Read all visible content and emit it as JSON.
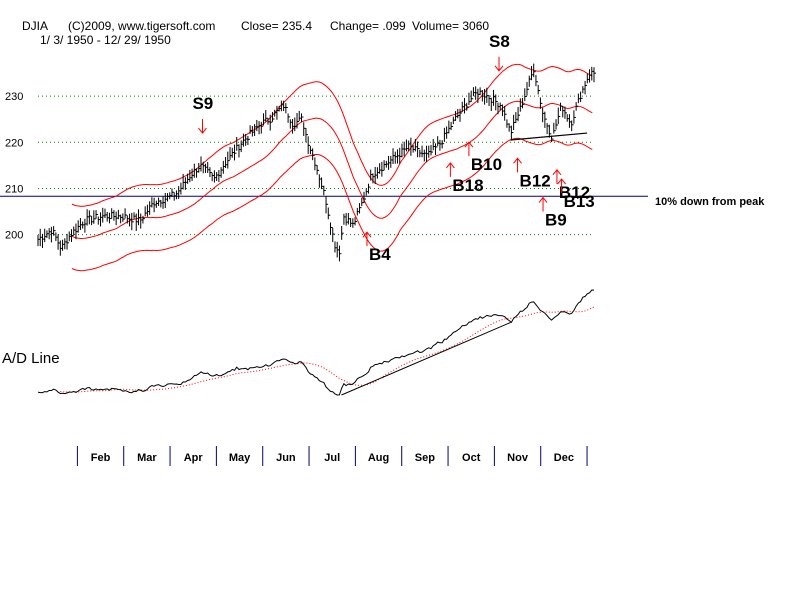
{
  "header": {
    "symbol": "DJIA",
    "copyright": "(C)2009, www.tigersoft.com",
    "close": "Close=  235.4",
    "change": "Change= .099",
    "volume": "Volume= 3060",
    "date_range": "1/ 3/ 1950 - 12/ 29/ 1950"
  },
  "colors": {
    "price": "#000000",
    "bands": "#ff0000",
    "signals": "#ff0000",
    "reference_line": "#000080",
    "grid": "#008000",
    "month_ticks": "#000080"
  },
  "chart_data": {
    "type": "line",
    "title": "DJIA 1950",
    "subtitle": "1/ 3/ 1950 - 12/ 29/ 1950",
    "y_ticks": [
      200,
      210,
      220,
      230
    ],
    "ylim": [
      188,
      240
    ],
    "grid": true,
    "months": [
      "Feb",
      "Mar",
      "Apr",
      "May",
      "Jun",
      "Jul",
      "Aug",
      "Sep",
      "Oct",
      "Nov",
      "Dec"
    ],
    "reference_line": {
      "value": 208.3,
      "label": "10% down from peak"
    },
    "price_anchors": [
      {
        "t": 0.0,
        "v": 199
      },
      {
        "t": 0.3,
        "v": 201
      },
      {
        "t": 0.5,
        "v": 197
      },
      {
        "t": 0.7,
        "v": 200
      },
      {
        "t": 1.0,
        "v": 203
      },
      {
        "t": 1.4,
        "v": 204
      },
      {
        "t": 1.8,
        "v": 204
      },
      {
        "t": 2.2,
        "v": 203
      },
      {
        "t": 2.5,
        "v": 207
      },
      {
        "t": 2.8,
        "v": 208
      },
      {
        "t": 3.0,
        "v": 209
      },
      {
        "t": 3.3,
        "v": 213
      },
      {
        "t": 3.5,
        "v": 215
      },
      {
        "t": 3.8,
        "v": 212
      },
      {
        "t": 4.0,
        "v": 215
      },
      {
        "t": 4.4,
        "v": 220
      },
      {
        "t": 4.8,
        "v": 224
      },
      {
        "t": 5.0,
        "v": 225
      },
      {
        "t": 5.3,
        "v": 228
      },
      {
        "t": 5.5,
        "v": 224
      },
      {
        "t": 5.7,
        "v": 225
      },
      {
        "t": 5.8,
        "v": 221
      },
      {
        "t": 6.0,
        "v": 215
      },
      {
        "t": 6.2,
        "v": 208
      },
      {
        "t": 6.4,
        "v": 198
      },
      {
        "t": 6.5,
        "v": 196
      },
      {
        "t": 6.6,
        "v": 204
      },
      {
        "t": 6.8,
        "v": 202
      },
      {
        "t": 7.0,
        "v": 207
      },
      {
        "t": 7.2,
        "v": 213
      },
      {
        "t": 7.6,
        "v": 216
      },
      {
        "t": 8.0,
        "v": 219
      },
      {
        "t": 8.4,
        "v": 217
      },
      {
        "t": 8.7,
        "v": 220
      },
      {
        "t": 9.0,
        "v": 225
      },
      {
        "t": 9.3,
        "v": 229
      },
      {
        "t": 9.5,
        "v": 231
      },
      {
        "t": 9.7,
        "v": 230
      },
      {
        "t": 10.0,
        "v": 228
      },
      {
        "t": 10.2,
        "v": 222
      },
      {
        "t": 10.4,
        "v": 227
      },
      {
        "t": 10.7,
        "v": 236
      },
      {
        "t": 10.9,
        "v": 226
      },
      {
        "t": 11.1,
        "v": 221
      },
      {
        "t": 11.3,
        "v": 228
      },
      {
        "t": 11.5,
        "v": 224
      },
      {
        "t": 11.7,
        "v": 230
      },
      {
        "t": 11.9,
        "v": 235
      }
    ],
    "signals": [
      {
        "label": "S9",
        "t": 3.55,
        "v": 222,
        "dir": "down"
      },
      {
        "label": "S8",
        "t": 9.95,
        "v": 235.5,
        "dir": "down"
      },
      {
        "label": "B4",
        "t": 7.1,
        "v": 197.5,
        "dir": "up"
      },
      {
        "label": "B18",
        "t": 8.9,
        "v": 212.5,
        "dir": "up"
      },
      {
        "label": "B10",
        "t": 9.3,
        "v": 217,
        "dir": "up"
      },
      {
        "label": "B12",
        "t": 10.35,
        "v": 213.5,
        "dir": "up"
      },
      {
        "label": "B12",
        "t": 11.2,
        "v": 211,
        "dir": "up"
      },
      {
        "label": "B9",
        "t": 10.9,
        "v": 205,
        "dir": "up"
      },
      {
        "label": "B13",
        "t": 11.3,
        "v": 209,
        "dir": "up"
      }
    ],
    "ad_line": {
      "label": "A/D Line"
    }
  }
}
